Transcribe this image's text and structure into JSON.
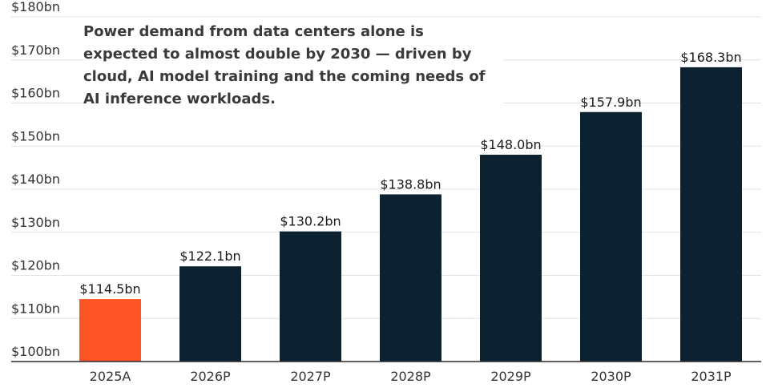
{
  "chart_data": {
    "type": "bar",
    "title": "",
    "xlabel": "",
    "ylabel": "",
    "annotation": "Power demand from data centers alone is expected to almost double by 2030 — driven by cloud, AI model training and the coming needs of AI inference workloads.",
    "categories": [
      "2025A",
      "2026P",
      "2027P",
      "2028P",
      "2029P",
      "2030P",
      "2031P"
    ],
    "values": [
      114.5,
      122.1,
      130.2,
      138.8,
      148.0,
      157.9,
      168.3
    ],
    "value_labels": [
      "$114.5bn",
      "$122.1bn",
      "$130.2bn",
      "$138.8bn",
      "$148.0bn",
      "$157.9bn",
      "$168.3bn"
    ],
    "ylim": [
      100,
      180
    ],
    "yticks": [
      100,
      110,
      120,
      130,
      140,
      150,
      160,
      170,
      180
    ],
    "ytick_labels": [
      "$100bn",
      "$110bn",
      "$120bn",
      "$130bn",
      "$140bn",
      "$150bn",
      "$160bn",
      "$170bn",
      "$180bn"
    ],
    "grid": true,
    "legend": "none",
    "colors": {
      "actual": "#ff5526",
      "projected": "#0d2230",
      "grid": "#e3e3e3",
      "axis": "#2b2b2b",
      "text": "#333333"
    },
    "highlight_index": 0
  }
}
